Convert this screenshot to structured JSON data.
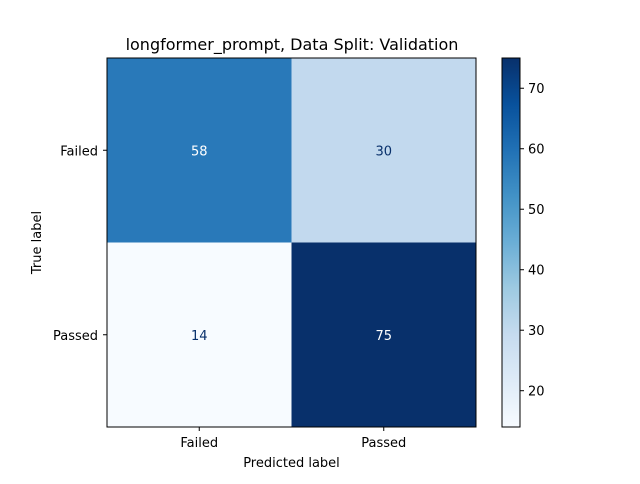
{
  "chart_data": {
    "type": "heatmap",
    "title": "longformer_prompt, Data Split: Validation",
    "xlabel": "Predicted label",
    "ylabel": "True label",
    "x_categories": [
      "Failed",
      "Passed"
    ],
    "y_categories": [
      "Failed",
      "Passed"
    ],
    "values": [
      [
        58,
        30
      ],
      [
        14,
        75
      ]
    ],
    "colormap": "Blues",
    "colorbar": {
      "range": [
        14,
        75
      ],
      "ticks": [
        20,
        30,
        40,
        50,
        60,
        70
      ]
    },
    "grid": false
  }
}
